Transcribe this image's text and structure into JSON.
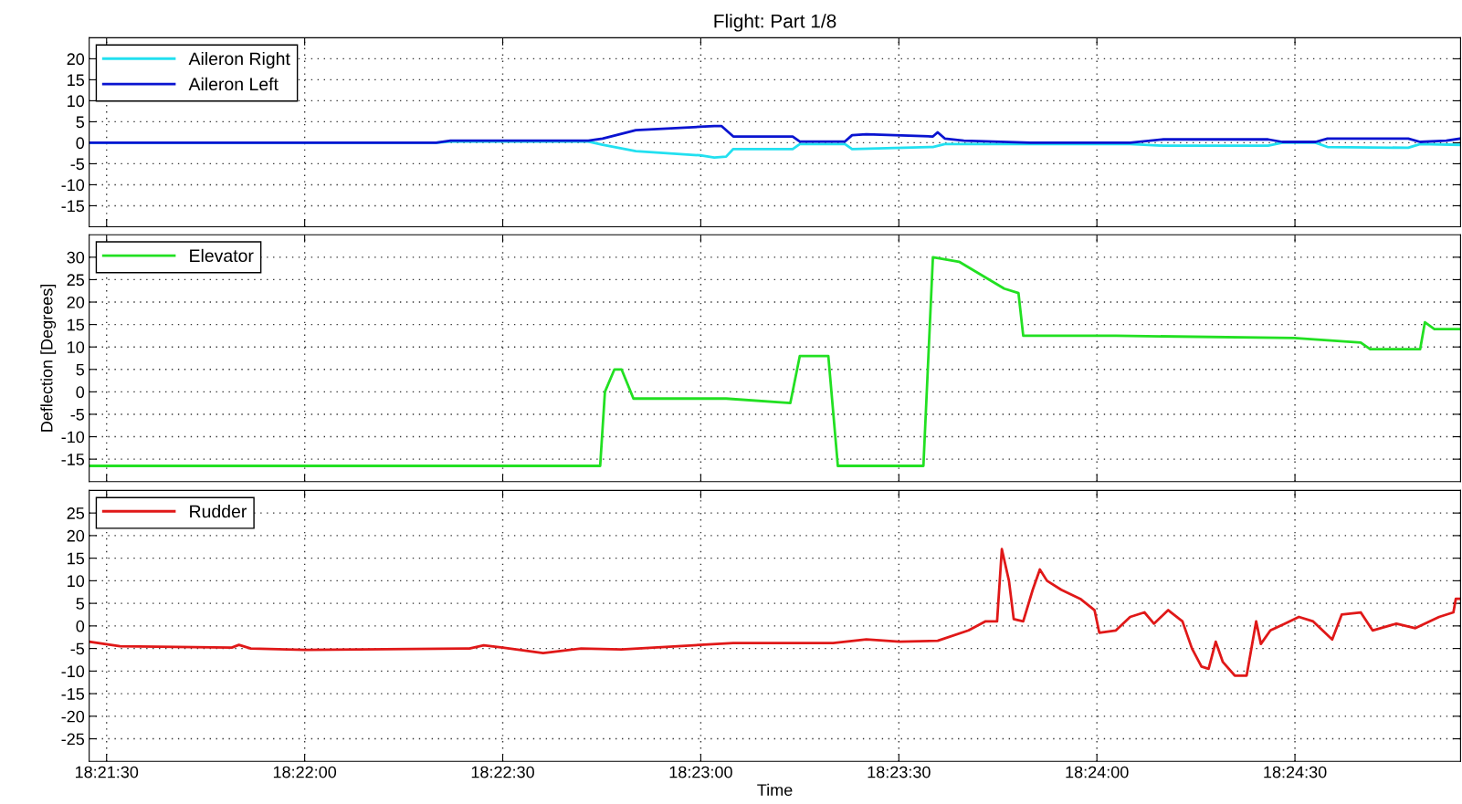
{
  "chart_data": [
    {
      "type": "line",
      "title": "Flight: Part 1/8",
      "xlim": [
        18.3576,
        18.4153
      ],
      "ylim": [
        -20,
        25
      ],
      "yticks": [
        -15,
        -10,
        -5,
        0,
        5,
        10,
        15,
        20
      ],
      "xticks": [
        {
          "value": 18.358333,
          "label": null
        },
        {
          "value": 18.366667,
          "label": null
        },
        {
          "value": 18.375,
          "label": null
        },
        {
          "value": 18.383333,
          "label": null
        },
        {
          "value": 18.391667,
          "label": null
        },
        {
          "value": 18.4,
          "label": null
        },
        {
          "value": 18.408333,
          "label": null
        }
      ],
      "tick_labels": "y",
      "grid": true,
      "legend": "top left",
      "line_style": "solid",
      "series": [
        {
          "name": "Aileron Right",
          "color": "#22e0f0",
          "x": [
            18.3576,
            18.3722,
            18.3728,
            18.3786,
            18.3792,
            18.3806,
            18.3833,
            18.3839,
            18.3844,
            18.3847,
            18.3872,
            18.3875,
            18.3894,
            18.3897,
            18.3931,
            18.3936,
            18.4014,
            18.4028,
            18.4072,
            18.4078,
            18.4092,
            18.4097,
            18.4131,
            18.4136,
            18.4153
          ],
          "values": [
            0,
            0,
            0.3,
            0.3,
            -0.5,
            -2,
            -3,
            -3.5,
            -3.3,
            -1.5,
            -1.5,
            -0.3,
            -0.3,
            -1.5,
            -1,
            -0.3,
            -0.3,
            -0.7,
            -0.7,
            0,
            0,
            -1,
            -1.2,
            -0.3,
            -0.5
          ]
        },
        {
          "name": "Aileron Left",
          "color": "#0a14d0",
          "x": [
            18.3576,
            18.3639,
            18.3722,
            18.3728,
            18.3786,
            18.3792,
            18.3806,
            18.3833,
            18.3839,
            18.3842,
            18.3847,
            18.3872,
            18.3875,
            18.3894,
            18.3897,
            18.3903,
            18.3931,
            18.3933,
            18.3936,
            18.3944,
            18.3972,
            18.4014,
            18.4028,
            18.4072,
            18.4078,
            18.4092,
            18.4097,
            18.4131,
            18.4136,
            18.4147,
            18.4153
          ],
          "values": [
            0,
            0,
            0,
            0.5,
            0.5,
            1,
            3,
            3.8,
            4,
            4,
            1.5,
            1.5,
            0.3,
            0.3,
            1.8,
            2,
            1.5,
            2.5,
            1,
            0.5,
            0,
            0,
            0.8,
            0.8,
            0.2,
            0.2,
            1,
            1,
            0.2,
            0.5,
            1
          ]
        }
      ]
    },
    {
      "type": "line",
      "ylabel": "Deflection [Degrees]",
      "xlim": [
        18.3576,
        18.4153
      ],
      "ylim": [
        -20,
        35
      ],
      "yticks": [
        -15,
        -10,
        -5,
        0,
        5,
        10,
        15,
        20,
        25,
        30
      ],
      "xticks": [
        {
          "value": 18.358333,
          "label": null
        },
        {
          "value": 18.366667,
          "label": null
        },
        {
          "value": 18.375,
          "label": null
        },
        {
          "value": 18.383333,
          "label": null
        },
        {
          "value": 18.391667,
          "label": null
        },
        {
          "value": 18.4,
          "label": null
        },
        {
          "value": 18.408333,
          "label": null
        }
      ],
      "tick_labels": "y",
      "grid": true,
      "legend": "top left",
      "line_style": "solid",
      "series": [
        {
          "name": "Elevator",
          "color": "#22e022",
          "x": [
            18.3576,
            18.3791,
            18.3793,
            18.3797,
            18.38,
            18.3805,
            18.3844,
            18.3871,
            18.3875,
            18.3887,
            18.3891,
            18.3927,
            18.3931,
            18.3942,
            18.3961,
            18.3967,
            18.3969,
            18.4008,
            18.4083,
            18.4111,
            18.4115,
            18.4136,
            18.4138,
            18.4142,
            18.4153
          ],
          "values": [
            -16.5,
            -16.5,
            0,
            5,
            5,
            -1.5,
            -1.5,
            -2.5,
            8,
            8,
            -16.5,
            -16.5,
            30,
            29,
            23,
            22,
            12.5,
            12.5,
            12,
            11,
            9.5,
            9.5,
            15.5,
            14,
            14
          ]
        }
      ]
    },
    {
      "type": "line",
      "xlabel": "Time",
      "xlim": [
        18.3576,
        18.4153
      ],
      "ylim": [
        -30,
        30
      ],
      "yticks": [
        -25,
        -20,
        -15,
        -10,
        -5,
        0,
        5,
        10,
        15,
        20,
        25
      ],
      "xticks": [
        {
          "value": 18.358333,
          "label": "18:21:30"
        },
        {
          "value": 18.366667,
          "label": "18:22:00"
        },
        {
          "value": 18.375,
          "label": "18:22:30"
        },
        {
          "value": 18.383333,
          "label": "18:23:00"
        },
        {
          "value": 18.391667,
          "label": "18:23:30"
        },
        {
          "value": 18.4,
          "label": "18:24:00"
        },
        {
          "value": 18.408333,
          "label": "18:24:30"
        }
      ],
      "grid": true,
      "legend": "top left",
      "line_style": "solid",
      "series": [
        {
          "name": "Rudder",
          "color": "#e01818",
          "x": [
            18.3576,
            18.3589,
            18.3636,
            18.3639,
            18.3644,
            18.3667,
            18.3736,
            18.3742,
            18.375,
            18.3767,
            18.3783,
            18.38,
            18.3833,
            18.3847,
            18.3889,
            18.3903,
            18.3917,
            18.3933,
            18.3946,
            18.3953,
            18.3958,
            18.396,
            18.3963,
            18.3965,
            18.3969,
            18.3973,
            18.3976,
            18.3979,
            18.3985,
            18.3993,
            18.3999,
            18.4001,
            18.4008,
            18.4014,
            18.402,
            18.4024,
            18.403,
            18.4036,
            18.404,
            18.4044,
            18.4047,
            18.405,
            18.4053,
            18.4058,
            18.4063,
            18.4067,
            18.4069,
            18.4073,
            18.4079,
            18.4085,
            18.4091,
            18.4099,
            18.4103,
            18.4111,
            18.4116,
            18.4126,
            18.4134,
            18.4144,
            18.415,
            18.4151,
            18.4153
          ],
          "values": [
            -3.5,
            -4.5,
            -4.8,
            -4.2,
            -5,
            -5.3,
            -5,
            -4.3,
            -4.8,
            -6,
            -5,
            -5.2,
            -4.2,
            -3.8,
            -3.8,
            -3,
            -3.5,
            -3.3,
            -1,
            1,
            1,
            17,
            10,
            1.5,
            1,
            8,
            12.5,
            10,
            8,
            6,
            3.5,
            -1.5,
            -1,
            2,
            3,
            0.5,
            3.5,
            1,
            -5,
            -9,
            -9.5,
            -3.5,
            -8,
            -11,
            -11,
            1,
            -4,
            -1,
            0.5,
            2,
            1,
            -3,
            2.5,
            3,
            -1,
            0.5,
            -0.5,
            2,
            3,
            6,
            6
          ]
        }
      ]
    }
  ]
}
